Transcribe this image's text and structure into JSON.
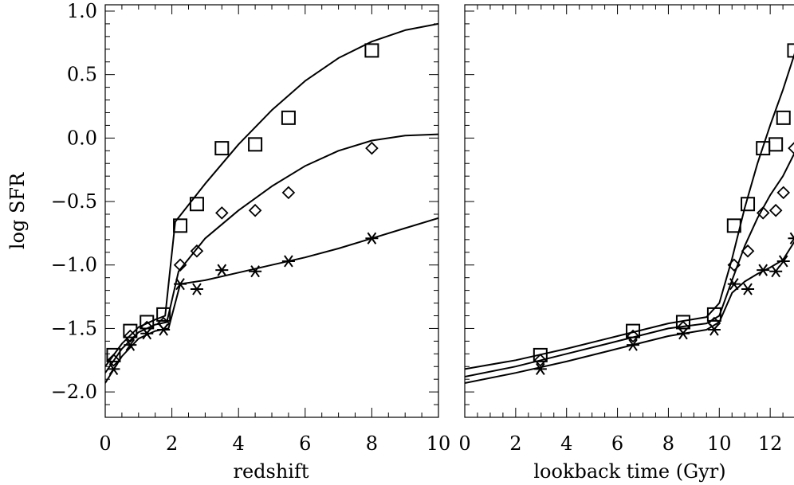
{
  "chart_data": [
    {
      "type": "scatter",
      "xlabel": "redshift",
      "ylabel": "log SFR",
      "xlim": [
        0,
        10
      ],
      "ylim": [
        -2.2,
        1.05
      ],
      "xticks": [
        0,
        2,
        4,
        6,
        8,
        10
      ],
      "xtick_labels": [
        "0",
        "2",
        "4",
        "6",
        "8",
        "10"
      ],
      "yticks": [
        -2.0,
        -1.5,
        -1.0,
        -0.5,
        0.0,
        0.5,
        1.0
      ],
      "ytick_labels": [
        "−2.0",
        "−1.5",
        "−1.0",
        "−0.5",
        "0.0",
        "0.5",
        "1.0"
      ],
      "grid": false,
      "series": [
        {
          "marker": "square",
          "points": [
            [
              0.25,
              -1.71
            ],
            [
              0.75,
              -1.52
            ],
            [
              1.25,
              -1.45
            ],
            [
              1.75,
              -1.39
            ],
            [
              2.25,
              -0.69
            ],
            [
              2.75,
              -0.52
            ],
            [
              3.5,
              -0.08
            ],
            [
              4.5,
              -0.05
            ],
            [
              5.5,
              0.16
            ],
            [
              8.0,
              0.69
            ]
          ],
          "fit": [
            [
              0.0,
              -1.8
            ],
            [
              0.5,
              -1.62
            ],
            [
              1.0,
              -1.49
            ],
            [
              1.5,
              -1.43
            ],
            [
              1.8,
              -1.4
            ],
            [
              2.1,
              -0.66
            ],
            [
              3.0,
              -0.36
            ],
            [
              4.0,
              -0.05
            ],
            [
              5.0,
              0.22
            ],
            [
              6.0,
              0.45
            ],
            [
              7.0,
              0.63
            ],
            [
              8.0,
              0.76
            ],
            [
              9.0,
              0.85
            ],
            [
              10.0,
              0.9
            ]
          ]
        },
        {
          "marker": "diamond",
          "points": [
            [
              0.25,
              -1.75
            ],
            [
              0.75,
              -1.56
            ],
            [
              1.25,
              -1.49
            ],
            [
              1.75,
              -1.46
            ],
            [
              2.25,
              -1.0
            ],
            [
              2.75,
              -0.89
            ],
            [
              3.5,
              -0.59
            ],
            [
              4.5,
              -0.57
            ],
            [
              5.5,
              -0.43
            ],
            [
              8.0,
              -0.08
            ]
          ],
          "fit": [
            [
              0.0,
              -1.85
            ],
            [
              0.5,
              -1.66
            ],
            [
              1.0,
              -1.53
            ],
            [
              1.5,
              -1.47
            ],
            [
              1.85,
              -1.45
            ],
            [
              2.2,
              -1.05
            ],
            [
              3.0,
              -0.79
            ],
            [
              4.0,
              -0.57
            ],
            [
              5.0,
              -0.38
            ],
            [
              6.0,
              -0.22
            ],
            [
              7.0,
              -0.1
            ],
            [
              8.0,
              -0.02
            ],
            [
              9.0,
              0.02
            ],
            [
              10.0,
              0.03
            ]
          ]
        },
        {
          "marker": "asterisk",
          "points": [
            [
              0.25,
              -1.82
            ],
            [
              0.75,
              -1.63
            ],
            [
              1.25,
              -1.54
            ],
            [
              1.75,
              -1.51
            ],
            [
              2.25,
              -1.15
            ],
            [
              2.75,
              -1.19
            ],
            [
              3.5,
              -1.04
            ],
            [
              4.5,
              -1.05
            ],
            [
              5.5,
              -0.97
            ],
            [
              8.0,
              -0.79
            ]
          ],
          "fit": [
            [
              0.0,
              -1.93
            ],
            [
              0.5,
              -1.72
            ],
            [
              1.0,
              -1.58
            ],
            [
              1.5,
              -1.52
            ],
            [
              1.9,
              -1.5
            ],
            [
              2.25,
              -1.15
            ],
            [
              3.0,
              -1.12
            ],
            [
              4.0,
              -1.06
            ],
            [
              5.0,
              -1.0
            ],
            [
              6.0,
              -0.94
            ],
            [
              7.0,
              -0.87
            ],
            [
              8.0,
              -0.79
            ],
            [
              9.0,
              -0.71
            ],
            [
              10.0,
              -0.63
            ]
          ]
        }
      ]
    },
    {
      "type": "scatter",
      "xlabel": "lookback time (Gyr)",
      "ylabel": "",
      "xlim": [
        0,
        14
      ],
      "ylim": [
        -2.2,
        1.05
      ],
      "xticks": [
        0,
        2,
        4,
        6,
        8,
        10,
        12
      ],
      "xtick_labels": [
        "0",
        "2",
        "4",
        "6",
        "8",
        "10",
        "12"
      ],
      "yticks": [
        -2.0,
        -1.5,
        -1.0,
        -0.5,
        0.0,
        0.5,
        1.0
      ],
      "ytick_labels": [],
      "grid": false,
      "series": [
        {
          "marker": "square",
          "points": [
            [
              2.97,
              -1.71
            ],
            [
              6.61,
              -1.52
            ],
            [
              8.58,
              -1.45
            ],
            [
              9.8,
              -1.39
            ],
            [
              10.58,
              -0.69
            ],
            [
              11.12,
              -0.52
            ],
            [
              11.72,
              -0.08
            ],
            [
              12.22,
              -0.05
            ],
            [
              12.52,
              0.16
            ],
            [
              12.95,
              0.69
            ]
          ],
          "fit": [
            [
              0.0,
              -1.82
            ],
            [
              2.0,
              -1.75
            ],
            [
              4.0,
              -1.66
            ],
            [
              6.0,
              -1.56
            ],
            [
              8.0,
              -1.46
            ],
            [
              9.5,
              -1.41
            ],
            [
              10.0,
              -1.3
            ],
            [
              10.5,
              -0.95
            ],
            [
              11.0,
              -0.55
            ],
            [
              11.5,
              -0.2
            ],
            [
              12.0,
              0.1
            ],
            [
              12.5,
              0.38
            ],
            [
              13.0,
              0.69
            ]
          ]
        },
        {
          "marker": "diamond",
          "points": [
            [
              2.97,
              -1.75
            ],
            [
              6.61,
              -1.56
            ],
            [
              8.58,
              -1.49
            ],
            [
              9.8,
              -1.46
            ],
            [
              10.58,
              -1.0
            ],
            [
              11.12,
              -0.89
            ],
            [
              11.72,
              -0.59
            ],
            [
              12.22,
              -0.57
            ],
            [
              12.52,
              -0.43
            ],
            [
              12.95,
              -0.08
            ]
          ],
          "fit": [
            [
              0.0,
              -1.88
            ],
            [
              2.0,
              -1.8
            ],
            [
              4.0,
              -1.7
            ],
            [
              6.0,
              -1.6
            ],
            [
              8.0,
              -1.5
            ],
            [
              9.5,
              -1.46
            ],
            [
              10.0,
              -1.4
            ],
            [
              10.5,
              -1.12
            ],
            [
              11.0,
              -0.85
            ],
            [
              11.5,
              -0.63
            ],
            [
              12.0,
              -0.45
            ],
            [
              12.5,
              -0.3
            ],
            [
              13.0,
              -0.1
            ]
          ]
        },
        {
          "marker": "asterisk",
          "points": [
            [
              2.97,
              -1.82
            ],
            [
              6.61,
              -1.63
            ],
            [
              8.58,
              -1.54
            ],
            [
              9.8,
              -1.51
            ],
            [
              10.58,
              -1.15
            ],
            [
              11.12,
              -1.19
            ],
            [
              11.72,
              -1.04
            ],
            [
              12.22,
              -1.05
            ],
            [
              12.52,
              -0.97
            ],
            [
              12.95,
              -0.79
            ]
          ],
          "fit": [
            [
              0.0,
              -1.93
            ],
            [
              2.0,
              -1.85
            ],
            [
              4.0,
              -1.76
            ],
            [
              6.0,
              -1.66
            ],
            [
              8.0,
              -1.56
            ],
            [
              9.5,
              -1.51
            ],
            [
              10.0,
              -1.45
            ],
            [
              10.5,
              -1.22
            ],
            [
              11.0,
              -1.13
            ],
            [
              11.5,
              -1.07
            ],
            [
              12.0,
              -1.02
            ],
            [
              12.5,
              -0.96
            ],
            [
              13.0,
              -0.8
            ]
          ]
        }
      ]
    }
  ]
}
